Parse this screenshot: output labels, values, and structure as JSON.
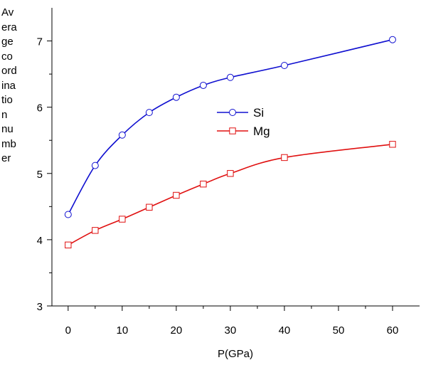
{
  "chart_data": {
    "type": "line",
    "xlabel": "P(GPa)",
    "ylabel": "Average coordination number",
    "ylabel_lines": [
      "Av",
      "era",
      "ge",
      "co",
      "ord",
      "ina",
      "tio",
      "n",
      "nu",
      "mb",
      "er"
    ],
    "xlim": [
      -3,
      65
    ],
    "ylim": [
      3,
      7.5
    ],
    "xticks": [
      0,
      10,
      20,
      30,
      40,
      50,
      60
    ],
    "yticks": [
      3,
      4,
      5,
      6,
      7
    ],
    "grid": false,
    "legend_position": "center",
    "series": [
      {
        "name": "Si",
        "color": "#1010d0",
        "marker": "circle",
        "x": [
          0,
          5,
          10,
          15,
          20,
          25,
          30,
          40,
          60
        ],
        "y": [
          4.38,
          5.12,
          5.58,
          5.92,
          6.15,
          6.33,
          6.45,
          6.63,
          7.02
        ]
      },
      {
        "name": "Mg",
        "color": "#e01010",
        "marker": "square",
        "x": [
          0,
          5,
          10,
          15,
          20,
          25,
          30,
          40,
          60
        ],
        "y": [
          3.92,
          4.14,
          4.31,
          4.49,
          4.67,
          4.84,
          5.0,
          5.24,
          5.44
        ]
      }
    ]
  }
}
